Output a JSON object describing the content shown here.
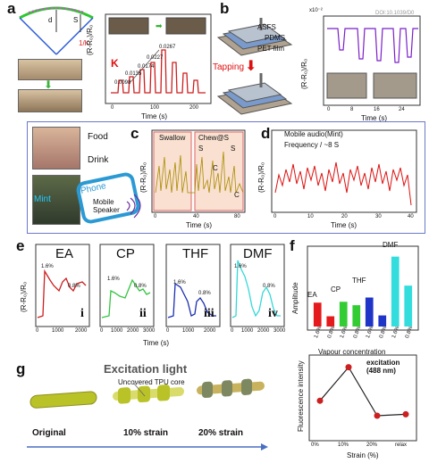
{
  "panels": {
    "a": {
      "label": "a",
      "diagram_labels": {
        "d": "d",
        "s": "S",
        "theta_over_k": "1/K"
      },
      "chart": {
        "ylabel": "(R-R₀)/R₀",
        "xlabel": "Time (s)",
        "x_ticks": [
          "0",
          "100",
          "200"
        ],
        "k_label": "K",
        "annotations": [
          "0.0098",
          "0.0135",
          "0.0174",
          "0.0227",
          "0.0267"
        ]
      }
    },
    "b": {
      "label": "b",
      "layers": [
        "ASFS",
        "PDMS",
        "PET film"
      ],
      "tapping": "Tapping",
      "chart": {
        "ylabel": "(R-R₀)/R₀",
        "xlabel": "Time (s)",
        "scale": "x10⁻²",
        "x_ticks": [
          "0",
          "8",
          "16",
          "24"
        ],
        "y_ticks": [
          "0",
          "4",
          "8",
          "12"
        ],
        "watermark": "DOI:10.1039/D0"
      }
    },
    "c": {
      "label": "c",
      "food": "Food",
      "drink": "Drink",
      "mint": "Mint",
      "phone": "Phone",
      "mobile_speaker": "Mobile\nSpeaker",
      "chart": {
        "ylabel": "(R-R₀)/R₀",
        "xlabel": "Time (s)",
        "x_ticks": [
          "0",
          "40",
          "80"
        ],
        "swallow": "Swallow",
        "chew": "Chew@S",
        "letters": [
          "S",
          "S",
          "C",
          "C"
        ]
      }
    },
    "d": {
      "label": "d",
      "ylabel": "(R-R₀)/R₀",
      "xlabel": "Time (s)",
      "line1": "Mobile audio(Mint)",
      "line2": "Frequency / ~8 S",
      "x_ticks": [
        "0",
        "10",
        "20",
        "30",
        "40"
      ]
    },
    "e": {
      "label": "e",
      "ylabel": "(R-R₀)/R₀",
      "xlabel": "Time (s)",
      "subplots": [
        {
          "name": "EA",
          "roman": "i",
          "color": "#cc1f1f",
          "a1": "1.6%",
          "a2": "0.8%",
          "ticks": [
            "0",
            "1000",
            "2000"
          ]
        },
        {
          "name": "CP",
          "roman": "ii",
          "color": "#35c440",
          "a1": "1.6%",
          "a2": "0.8%",
          "ticks": [
            "0",
            "1000",
            "2000",
            "3000"
          ]
        },
        {
          "name": "THF",
          "roman": "iii",
          "color": "#1b2fb0",
          "a1": "1.6%",
          "a2": "0.8%",
          "ticks": [
            "0",
            "1000",
            "2000"
          ]
        },
        {
          "name": "DMF",
          "roman": "iv",
          "color": "#35d8d8",
          "a1": "1.6%",
          "a2": "0.8%",
          "ticks": [
            "0",
            "1000",
            "2000",
            "3000"
          ]
        }
      ]
    },
    "f": {
      "label": "f",
      "ylabel": "Amplitude",
      "xlabel": "Vapour concentration",
      "group_labels": [
        "EA",
        "CP",
        "THF",
        "DMF"
      ],
      "bar_labels": [
        "1.6%",
        "0.8%",
        "1.6%",
        "0.8%",
        "1.6%",
        "0.8%",
        "1.6%",
        "0.8%"
      ]
    },
    "g": {
      "label": "g",
      "title": "Excitation light",
      "core_label": "Uncovered TPU core",
      "stages": [
        "Original",
        "10% strain",
        "20% strain"
      ],
      "chart": {
        "title": "excitation\n(488 nm)",
        "ylabel": "Fluorescence intensity",
        "xlabel": "Strain (%)",
        "x_ticks": [
          "0%",
          "10%",
          "20%",
          "relax"
        ]
      }
    }
  },
  "chart_data": [
    {
      "type": "bar",
      "id": "f",
      "categories": [
        "EA 1.6%",
        "EA 0.8%",
        "CP 1.6%",
        "CP 0.8%",
        "THF 1.6%",
        "THF 0.8%",
        "DMF 1.6%",
        "DMF 0.8%"
      ],
      "values": [
        2.8,
        1.2,
        2.9,
        2.5,
        3.4,
        1.3,
        8.2,
        4.8
      ],
      "colors": [
        "#e41a1c",
        "#e41a1c",
        "#33cc33",
        "#33cc33",
        "#1f35c8",
        "#1f35c8",
        "#33dddd",
        "#33dddd"
      ],
      "ylim": [
        0,
        9
      ]
    },
    {
      "type": "line",
      "id": "g-fluorescence",
      "x": [
        "0%",
        "10%",
        "20%",
        "relax"
      ],
      "values": [
        0.46,
        0.93,
        0.25,
        0.27
      ],
      "ylim": [
        0,
        1
      ],
      "color": "#cc1f1f"
    }
  ]
}
